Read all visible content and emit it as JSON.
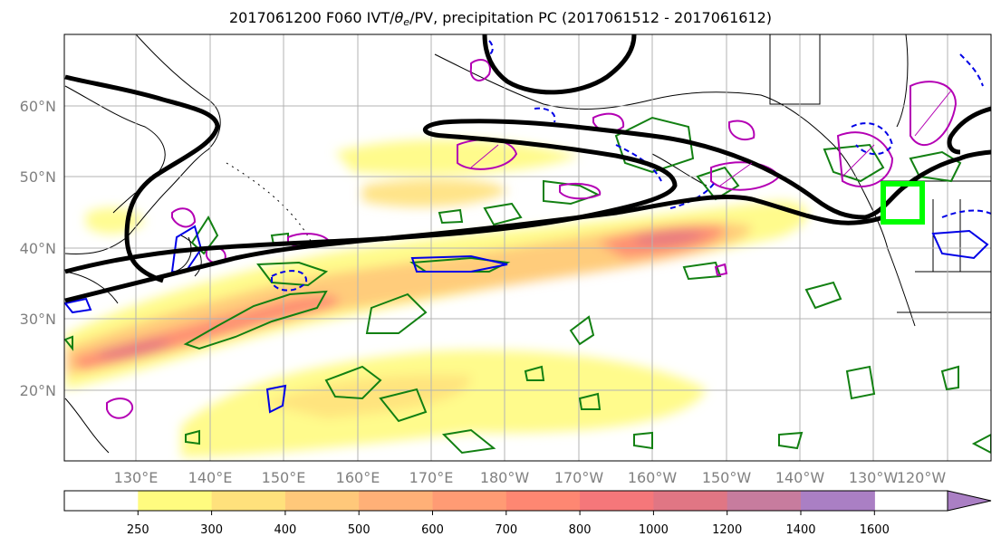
{
  "title": {
    "prefix": "2017061200 F060 IVT/",
    "theta": "θ",
    "theta_sub": "e",
    "suffix": "/PV, precipitation PC (2017061512 - 2017061612)"
  },
  "lat_labels": [
    "60°N",
    "50°N",
    "40°N",
    "30°N",
    "20°N"
  ],
  "lon_labels": [
    "130°E",
    "140°E",
    "150°E",
    "160°E",
    "170°E",
    "180°W",
    "170°W",
    "160°W",
    "150°W",
    "140°W",
    "130°W",
    "120°W"
  ],
  "colorbar": {
    "ticks": [
      "250",
      "300",
      "400",
      "500",
      "600",
      "700",
      "800",
      "1000",
      "1200",
      "1400",
      "1600"
    ],
    "colors": [
      "#ffffff",
      "#fffb7f",
      "#ffe17c",
      "#ffc87a",
      "#ffb077",
      "#ff9b74",
      "#fe8772",
      "#f5777a",
      "#e07684",
      "#c77c9e",
      "#aa7fc4"
    ]
  },
  "target_box_color": "#00ff00"
}
